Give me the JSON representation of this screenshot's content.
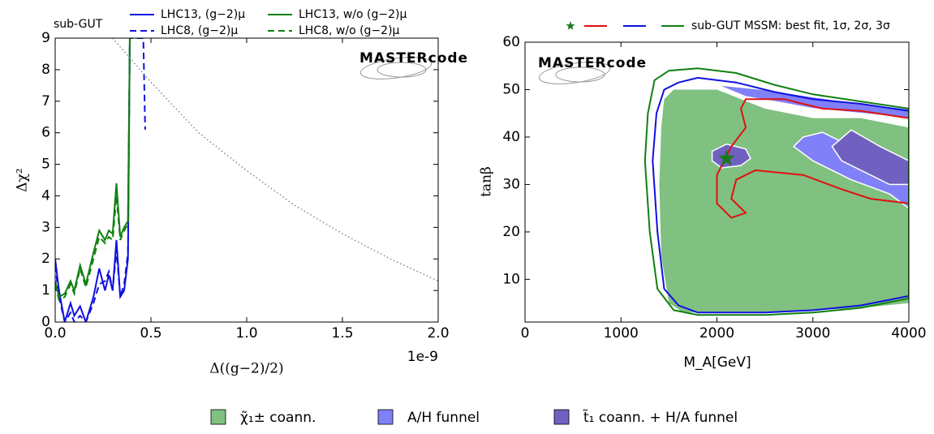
{
  "chart_data": [
    {
      "type": "line",
      "annotation": "sub-GUT",
      "xlabel": "Δ((g−2)/2)",
      "ylabel": "Δχ²",
      "x_offset_label": "1e-9",
      "xlim": [
        0,
        2
      ],
      "ylim": [
        0,
        9
      ],
      "xticks": [
        {
          "value": 0,
          "label": "0.0"
        },
        {
          "value": 0.5,
          "label": "0.5"
        },
        {
          "value": 1,
          "label": "1.0"
        },
        {
          "value": 1.5,
          "label": "1.5"
        },
        {
          "value": 2,
          "label": "2.0"
        }
      ],
      "yticks": [
        0,
        1,
        2,
        3,
        4,
        5,
        6,
        7,
        8,
        9
      ],
      "series": [
        {
          "name": "LHC13, (g−2)μ",
          "color": "#1010e0",
          "dash": "solid",
          "x": [
            0,
            0.02,
            0.05,
            0.08,
            0.1,
            0.13,
            0.16,
            0.2,
            0.23,
            0.26,
            0.28,
            0.3,
            0.32,
            0.34,
            0.36,
            0.38,
            0.39
          ],
          "values": [
            2.0,
            1.0,
            0.0,
            0.6,
            0.2,
            0.5,
            0.0,
            0.8,
            1.7,
            1.0,
            1.5,
            1.0,
            2.6,
            0.8,
            1.0,
            2.0,
            9.0
          ]
        },
        {
          "name": "LHC8, (g−2)μ",
          "color": "#1010e0",
          "dash": "dashed",
          "x": [
            0,
            0.02,
            0.05,
            0.08,
            0.1,
            0.13,
            0.16,
            0.2,
            0.23,
            0.26,
            0.28,
            0.3,
            0.32,
            0.34,
            0.36,
            0.38,
            0.39,
            0.4,
            0.46,
            0.47
          ],
          "values": [
            1.8,
            0.8,
            0.0,
            0.3,
            0.0,
            0.2,
            0.0,
            0.6,
            1.2,
            1.3,
            1.6,
            1.0,
            2.3,
            0.8,
            1.2,
            2.2,
            9.0,
            9.0,
            9.0,
            6.1
          ]
        },
        {
          "name": "LHC13, w/o (g−2)μ",
          "color": "#108010",
          "dash": "solid",
          "x": [
            0,
            0.02,
            0.05,
            0.08,
            0.1,
            0.13,
            0.16,
            0.2,
            0.23,
            0.26,
            0.28,
            0.3,
            0.32,
            0.34,
            0.36,
            0.38,
            0.39
          ],
          "values": [
            1.3,
            0.8,
            0.9,
            1.3,
            1.0,
            1.8,
            1.2,
            2.2,
            2.9,
            2.6,
            2.9,
            2.8,
            4.4,
            2.7,
            3.0,
            3.2,
            9.0
          ]
        },
        {
          "name": "LHC8, w/o (g−2)μ",
          "color": "#108010",
          "dash": "dashed",
          "x": [
            0,
            0.02,
            0.05,
            0.08,
            0.1,
            0.13,
            0.16,
            0.2,
            0.23,
            0.26,
            0.28,
            0.3,
            0.32,
            0.34,
            0.36,
            0.38,
            0.39
          ],
          "values": [
            1.2,
            0.7,
            0.8,
            1.2,
            0.9,
            1.7,
            1.1,
            2.0,
            2.7,
            2.5,
            2.7,
            2.6,
            4.0,
            2.6,
            2.9,
            3.1,
            9.0
          ]
        },
        {
          "color": "#888888",
          "dash": "dotted",
          "x": [
            0.3,
            0.5,
            0.75,
            1.0,
            1.25,
            1.5,
            1.75,
            2.0
          ],
          "values": [
            9.0,
            7.6,
            6.0,
            4.8,
            3.7,
            2.8,
            2.0,
            1.3
          ]
        }
      ],
      "logo": "MASTERcode"
    },
    {
      "type": "contour",
      "legend_label": "sub-GUT MSSM: best fit, 1σ, 2σ, 3σ",
      "xlabel": "M_A[GeV]",
      "ylabel": "tanβ",
      "xlim": [
        0,
        4000
      ],
      "ylim": [
        1,
        60
      ],
      "xticks": [
        0,
        1000,
        2000,
        3000,
        4000
      ],
      "yticks": [
        10,
        20,
        30,
        40,
        50,
        60
      ],
      "best_fit": {
        "x": 2100,
        "y": 35.5,
        "color": "#1a7a1a"
      },
      "regions": [
        {
          "name": "χ̃₁± coann.",
          "color": "#80c080",
          "polygons": [
            {
              "x": [
                1450,
                1550,
                2000,
                2500,
                3000,
                3500,
                4000,
                4000,
                3500,
                2500,
                1650,
                1500,
                1420,
                1400,
                1420
              ],
              "y": [
                48,
                50,
                50,
                46,
                44,
                44,
                42,
                5,
                4,
                3,
                3,
                5,
                15,
                30,
                42
              ]
            }
          ]
        },
        {
          "name": "A/H funnel",
          "color": "#8080f8",
          "polygons": [
            {
              "x": [
                2000,
                2500,
                3000,
                3500,
                4000,
                4000,
                3500,
                3000,
                2600,
                2300
              ],
              "y": [
                51,
                50,
                48.5,
                47,
                46,
                44,
                45,
                46,
                47.5,
                48.5
              ]
            },
            {
              "x": [
                2800,
                3000,
                3400,
                3800,
                4000,
                4000,
                3800,
                3400,
                3100,
                2900
              ],
              "y": [
                38,
                35,
                31,
                28,
                25,
                31,
                33,
                38,
                41,
                40
              ]
            }
          ]
        },
        {
          "name": "t̃₁ coann. + H/A funnel",
          "color": "#7060c0",
          "polygons": [
            {
              "x": [
                1950,
                2100,
                2300,
                2350,
                2250,
                2050,
                1950
              ],
              "y": [
                37,
                38.5,
                37.5,
                35.5,
                34,
                33.5,
                35
              ]
            },
            {
              "x": [
                3200,
                3400,
                3700,
                4000,
                4000,
                3800,
                3600,
                3300
              ],
              "y": [
                38,
                41.5,
                38,
                35,
                30,
                30,
                32,
                35
              ]
            }
          ]
        }
      ],
      "contours": [
        {
          "color": "#e01010",
          "polygons": [
            {
              "x": [
                2300,
                2700,
                3100,
                3500,
                4000,
                4000,
                3600,
                3300,
                2900,
                2400,
                2200,
                2150,
                2300,
                2150,
                2000,
                2000,
                2150,
                2300,
                2250
              ],
              "y": [
                48,
                48,
                46,
                45.5,
                44,
                26,
                27,
                29,
                32,
                33,
                31,
                27,
                24,
                23,
                26,
                32,
                38,
                42,
                46
              ]
            }
          ]
        },
        {
          "color": "#1010e0",
          "polygons": [
            {
              "x": [
                1450,
                1600,
                1800,
                2200,
                2600,
                3000,
                3500,
                4000,
                4000,
                3500,
                3000,
                2500,
                1800,
                1600,
                1450,
                1380,
                1330,
                1370
              ],
              "y": [
                50,
                51.5,
                52.5,
                51.5,
                49.5,
                48,
                47,
                45.5,
                6.5,
                4.5,
                3.5,
                3,
                3,
                4.5,
                8,
                20,
                35,
                45
              ]
            }
          ]
        },
        {
          "color": "#108010",
          "polygons": [
            {
              "x": [
                1350,
                1500,
                1800,
                2200,
                2600,
                3000,
                3500,
                4000,
                4000,
                3500,
                3000,
                2500,
                1800,
                1550,
                1380,
                1300,
                1250,
                1280
              ],
              "y": [
                52,
                54,
                54.5,
                53.5,
                51,
                49,
                47.5,
                46,
                6,
                4,
                3,
                2.5,
                2.5,
                3.5,
                8,
                20,
                35,
                45
              ]
            }
          ]
        }
      ],
      "logo": "MASTERcode"
    }
  ]
}
